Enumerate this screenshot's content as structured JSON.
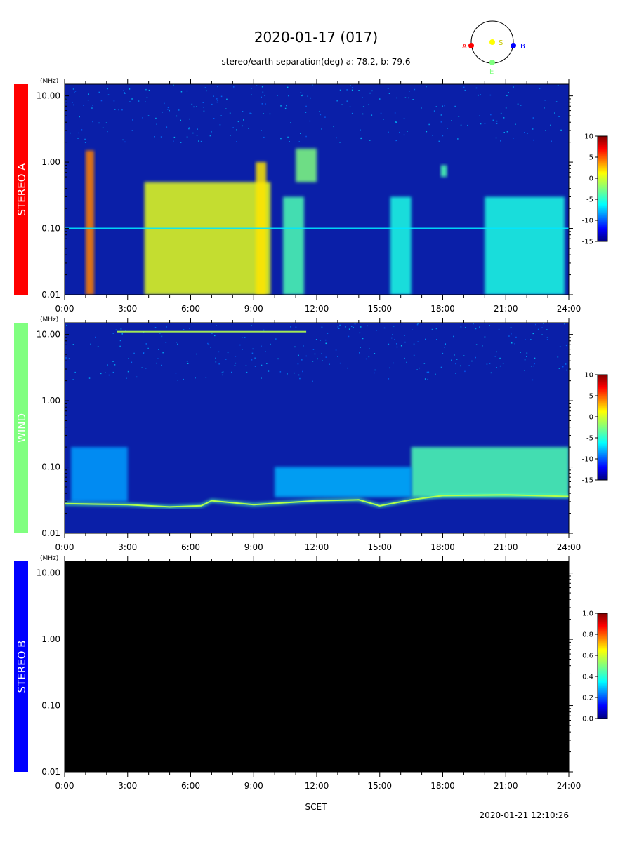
{
  "header": {
    "title": "2020-01-17 (017)",
    "separation": "stereo/earth separation(deg) a:  78.2, b:  79.6"
  },
  "orbit": {
    "label_a": "A",
    "label_s": "S",
    "label_b": "B",
    "label_e": "E",
    "colors": {
      "a": "#ff0000",
      "s": "#ffff00",
      "b": "#0000ff",
      "e": "#80ff80"
    }
  },
  "footer": {
    "xlabel": "SCET",
    "timestamp": "2020-01-21 12:10:26"
  },
  "chart_data": [
    {
      "type": "heatmap",
      "panel": "STEREO A",
      "side_color": "#ff0000",
      "side_text_color": "#ffffff",
      "unit": "(MHz)",
      "y_scale": "log",
      "ylim": [
        0.01,
        15
      ],
      "y_ticks": [
        0.01,
        0.1,
        1.0,
        10.0
      ],
      "y_tick_labels": [
        "0.01",
        "0.10",
        "1.00",
        "10.00"
      ],
      "xlim_hours": [
        0,
        24
      ],
      "x_tick_labels": [
        "0:00",
        "3:00",
        "6:00",
        "9:00",
        "12:00",
        "15:00",
        "18:00",
        "21:00",
        "24:00"
      ],
      "colorbar": {
        "range": [
          -15,
          10
        ],
        "ticks": [
          "10",
          "5",
          "0",
          "-5",
          "-10",
          "-15"
        ]
      },
      "background": "#0a1fa8",
      "features": [
        {
          "name": "type III burst",
          "t_start": 1.0,
          "t_end": 1.4,
          "f_low": 0.01,
          "f_high": 1.5,
          "level": 0.75
        },
        {
          "name": "enhancement",
          "t_start": 3.8,
          "t_end": 9.8,
          "f_low": 0.01,
          "f_high": 0.5,
          "level": 0.6
        },
        {
          "name": "burst",
          "t_start": 9.1,
          "t_end": 9.6,
          "f_low": 0.01,
          "f_high": 1.0,
          "level": 0.65
        },
        {
          "name": "burst",
          "t_start": 10.4,
          "t_end": 11.4,
          "f_low": 0.01,
          "f_high": 0.3,
          "level": 0.45
        },
        {
          "name": "burst",
          "t_start": 11.0,
          "t_end": 12.0,
          "f_low": 0.5,
          "f_high": 1.6,
          "level": 0.5
        },
        {
          "name": "activity",
          "t_start": 15.5,
          "t_end": 16.5,
          "f_low": 0.01,
          "f_high": 0.3,
          "level": 0.4
        },
        {
          "name": "burst",
          "t_start": 17.9,
          "t_end": 18.2,
          "f_low": 0.6,
          "f_high": 0.9,
          "level": 0.45
        },
        {
          "name": "activity",
          "t_start": 20.0,
          "t_end": 23.8,
          "f_low": 0.01,
          "f_high": 0.3,
          "level": 0.4
        }
      ],
      "bands": [
        {
          "f": 0.1,
          "level": 0.35
        }
      ]
    },
    {
      "type": "heatmap",
      "panel": "WIND",
      "side_color": "#80ff80",
      "side_text_color": "#ffffff",
      "unit": "(MHz)",
      "y_scale": "log",
      "ylim": [
        0.01,
        15
      ],
      "y_ticks": [
        0.01,
        0.1,
        1.0,
        10.0
      ],
      "y_tick_labels": [
        "0.01",
        "0.10",
        "1.00",
        "10.00"
      ],
      "xlim_hours": [
        0,
        24
      ],
      "x_tick_labels": [
        "0:00",
        "3:00",
        "6:00",
        "9:00",
        "12:00",
        "15:00",
        "18:00",
        "21:00",
        "24:00"
      ],
      "colorbar": {
        "range": [
          -15,
          10
        ],
        "ticks": [
          "10",
          "5",
          "0",
          "-5",
          "-10",
          "-15"
        ]
      },
      "background": "#0a1fa8",
      "plasma_line": {
        "hours": [
          0,
          3,
          5,
          6.5,
          7,
          9,
          12,
          14,
          15,
          16.5,
          18,
          21,
          24
        ],
        "mhz": [
          0.028,
          0.027,
          0.025,
          0.026,
          0.031,
          0.027,
          0.031,
          0.032,
          0.026,
          0.032,
          0.037,
          0.038,
          0.036
        ]
      },
      "features": [
        {
          "name": "enhancement",
          "t_start": 16.5,
          "t_end": 24.0,
          "f_low": 0.035,
          "f_high": 0.2,
          "level": 0.45
        },
        {
          "name": "enhancement",
          "t_start": 10.0,
          "t_end": 16.5,
          "f_low": 0.035,
          "f_high": 0.1,
          "level": 0.3
        },
        {
          "name": "activity",
          "t_start": 0.3,
          "t_end": 3.0,
          "f_low": 0.03,
          "f_high": 0.2,
          "level": 0.28
        }
      ],
      "bands": [
        {
          "f": 11.0,
          "t_start": 2.5,
          "t_end": 11.5,
          "level": 0.55
        }
      ]
    },
    {
      "type": "heatmap",
      "panel": "STEREO B",
      "side_color": "#0000ff",
      "side_text_color": "#ffffff",
      "unit": "(MHz)",
      "y_scale": "log",
      "ylim": [
        0.01,
        15
      ],
      "y_ticks": [
        0.01,
        0.1,
        1.0,
        10.0
      ],
      "y_tick_labels": [
        "0.01",
        "0.10",
        "1.00",
        "10.00"
      ],
      "xlim_hours": [
        0,
        24
      ],
      "x_tick_labels": [
        "0:00",
        "3:00",
        "6:00",
        "9:00",
        "12:00",
        "15:00",
        "18:00",
        "21:00",
        "24:00"
      ],
      "colorbar": {
        "range": [
          0,
          1
        ],
        "ticks": [
          "1.0",
          "0.8",
          "0.6",
          "0.4",
          "0.2",
          "0.0"
        ]
      },
      "background": "#000000",
      "features": [],
      "bands": []
    }
  ]
}
